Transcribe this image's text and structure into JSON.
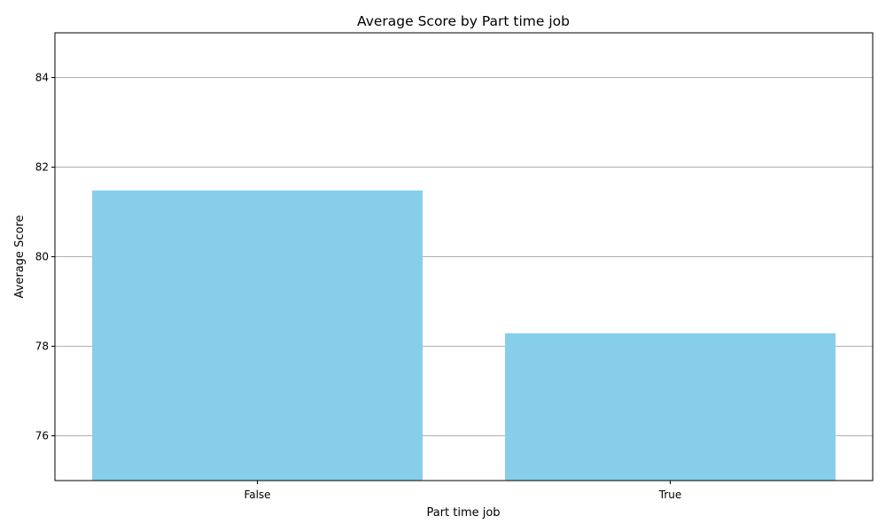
{
  "chart_data": {
    "type": "bar",
    "title": "Average Score by Part time job",
    "xlabel": "Part time job",
    "ylabel": "Average Score",
    "categories": [
      "False",
      "True"
    ],
    "values": [
      81.48,
      78.29
    ],
    "ylim": [
      75,
      85
    ],
    "yticks": [
      76,
      78,
      80,
      82,
      84
    ],
    "ytick_labels": [
      "76",
      "78",
      "80",
      "82",
      "84"
    ],
    "grid": "y-axis only",
    "bar_color": "#87ceeb",
    "grid_color": "#b0b0b0"
  }
}
